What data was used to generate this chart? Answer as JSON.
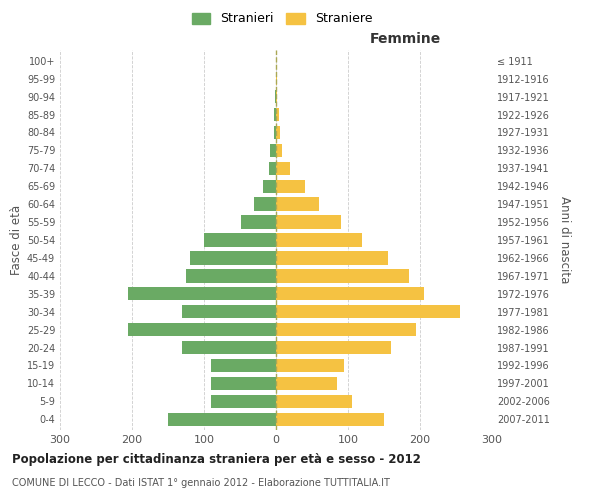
{
  "age_groups": [
    "0-4",
    "5-9",
    "10-14",
    "15-19",
    "20-24",
    "25-29",
    "30-34",
    "35-39",
    "40-44",
    "45-49",
    "50-54",
    "55-59",
    "60-64",
    "65-69",
    "70-74",
    "75-79",
    "80-84",
    "85-89",
    "90-94",
    "95-99",
    "100+"
  ],
  "birth_years": [
    "2007-2011",
    "2002-2006",
    "1997-2001",
    "1992-1996",
    "1987-1991",
    "1982-1986",
    "1977-1981",
    "1972-1976",
    "1967-1971",
    "1962-1966",
    "1957-1961",
    "1952-1956",
    "1947-1951",
    "1942-1946",
    "1937-1941",
    "1932-1936",
    "1927-1931",
    "1922-1926",
    "1917-1921",
    "1912-1916",
    "≤ 1911"
  ],
  "males": [
    150,
    90,
    90,
    90,
    130,
    205,
    130,
    205,
    125,
    120,
    100,
    48,
    30,
    18,
    10,
    8,
    3,
    3,
    1,
    0,
    0
  ],
  "females": [
    150,
    105,
    85,
    95,
    160,
    195,
    255,
    205,
    185,
    155,
    120,
    90,
    60,
    40,
    20,
    8,
    5,
    4,
    2,
    1,
    0
  ],
  "male_color": "#6aaa64",
  "female_color": "#f5c242",
  "title": "Popolazione per cittadinanza straniera per età e sesso - 2012",
  "subtitle": "COMUNE DI LECCO - Dati ISTAT 1° gennaio 2012 - Elaborazione TUTTITALIA.IT",
  "ylabel_left": "Fasce di età",
  "ylabel_right": "Anni di nascita",
  "xlabel_right": "Femmine",
  "legend_male": "Stranieri",
  "legend_female": "Straniere",
  "xlim": 300,
  "bg_color": "#ffffff",
  "grid_color": "#cccccc",
  "bar_height": 0.75
}
